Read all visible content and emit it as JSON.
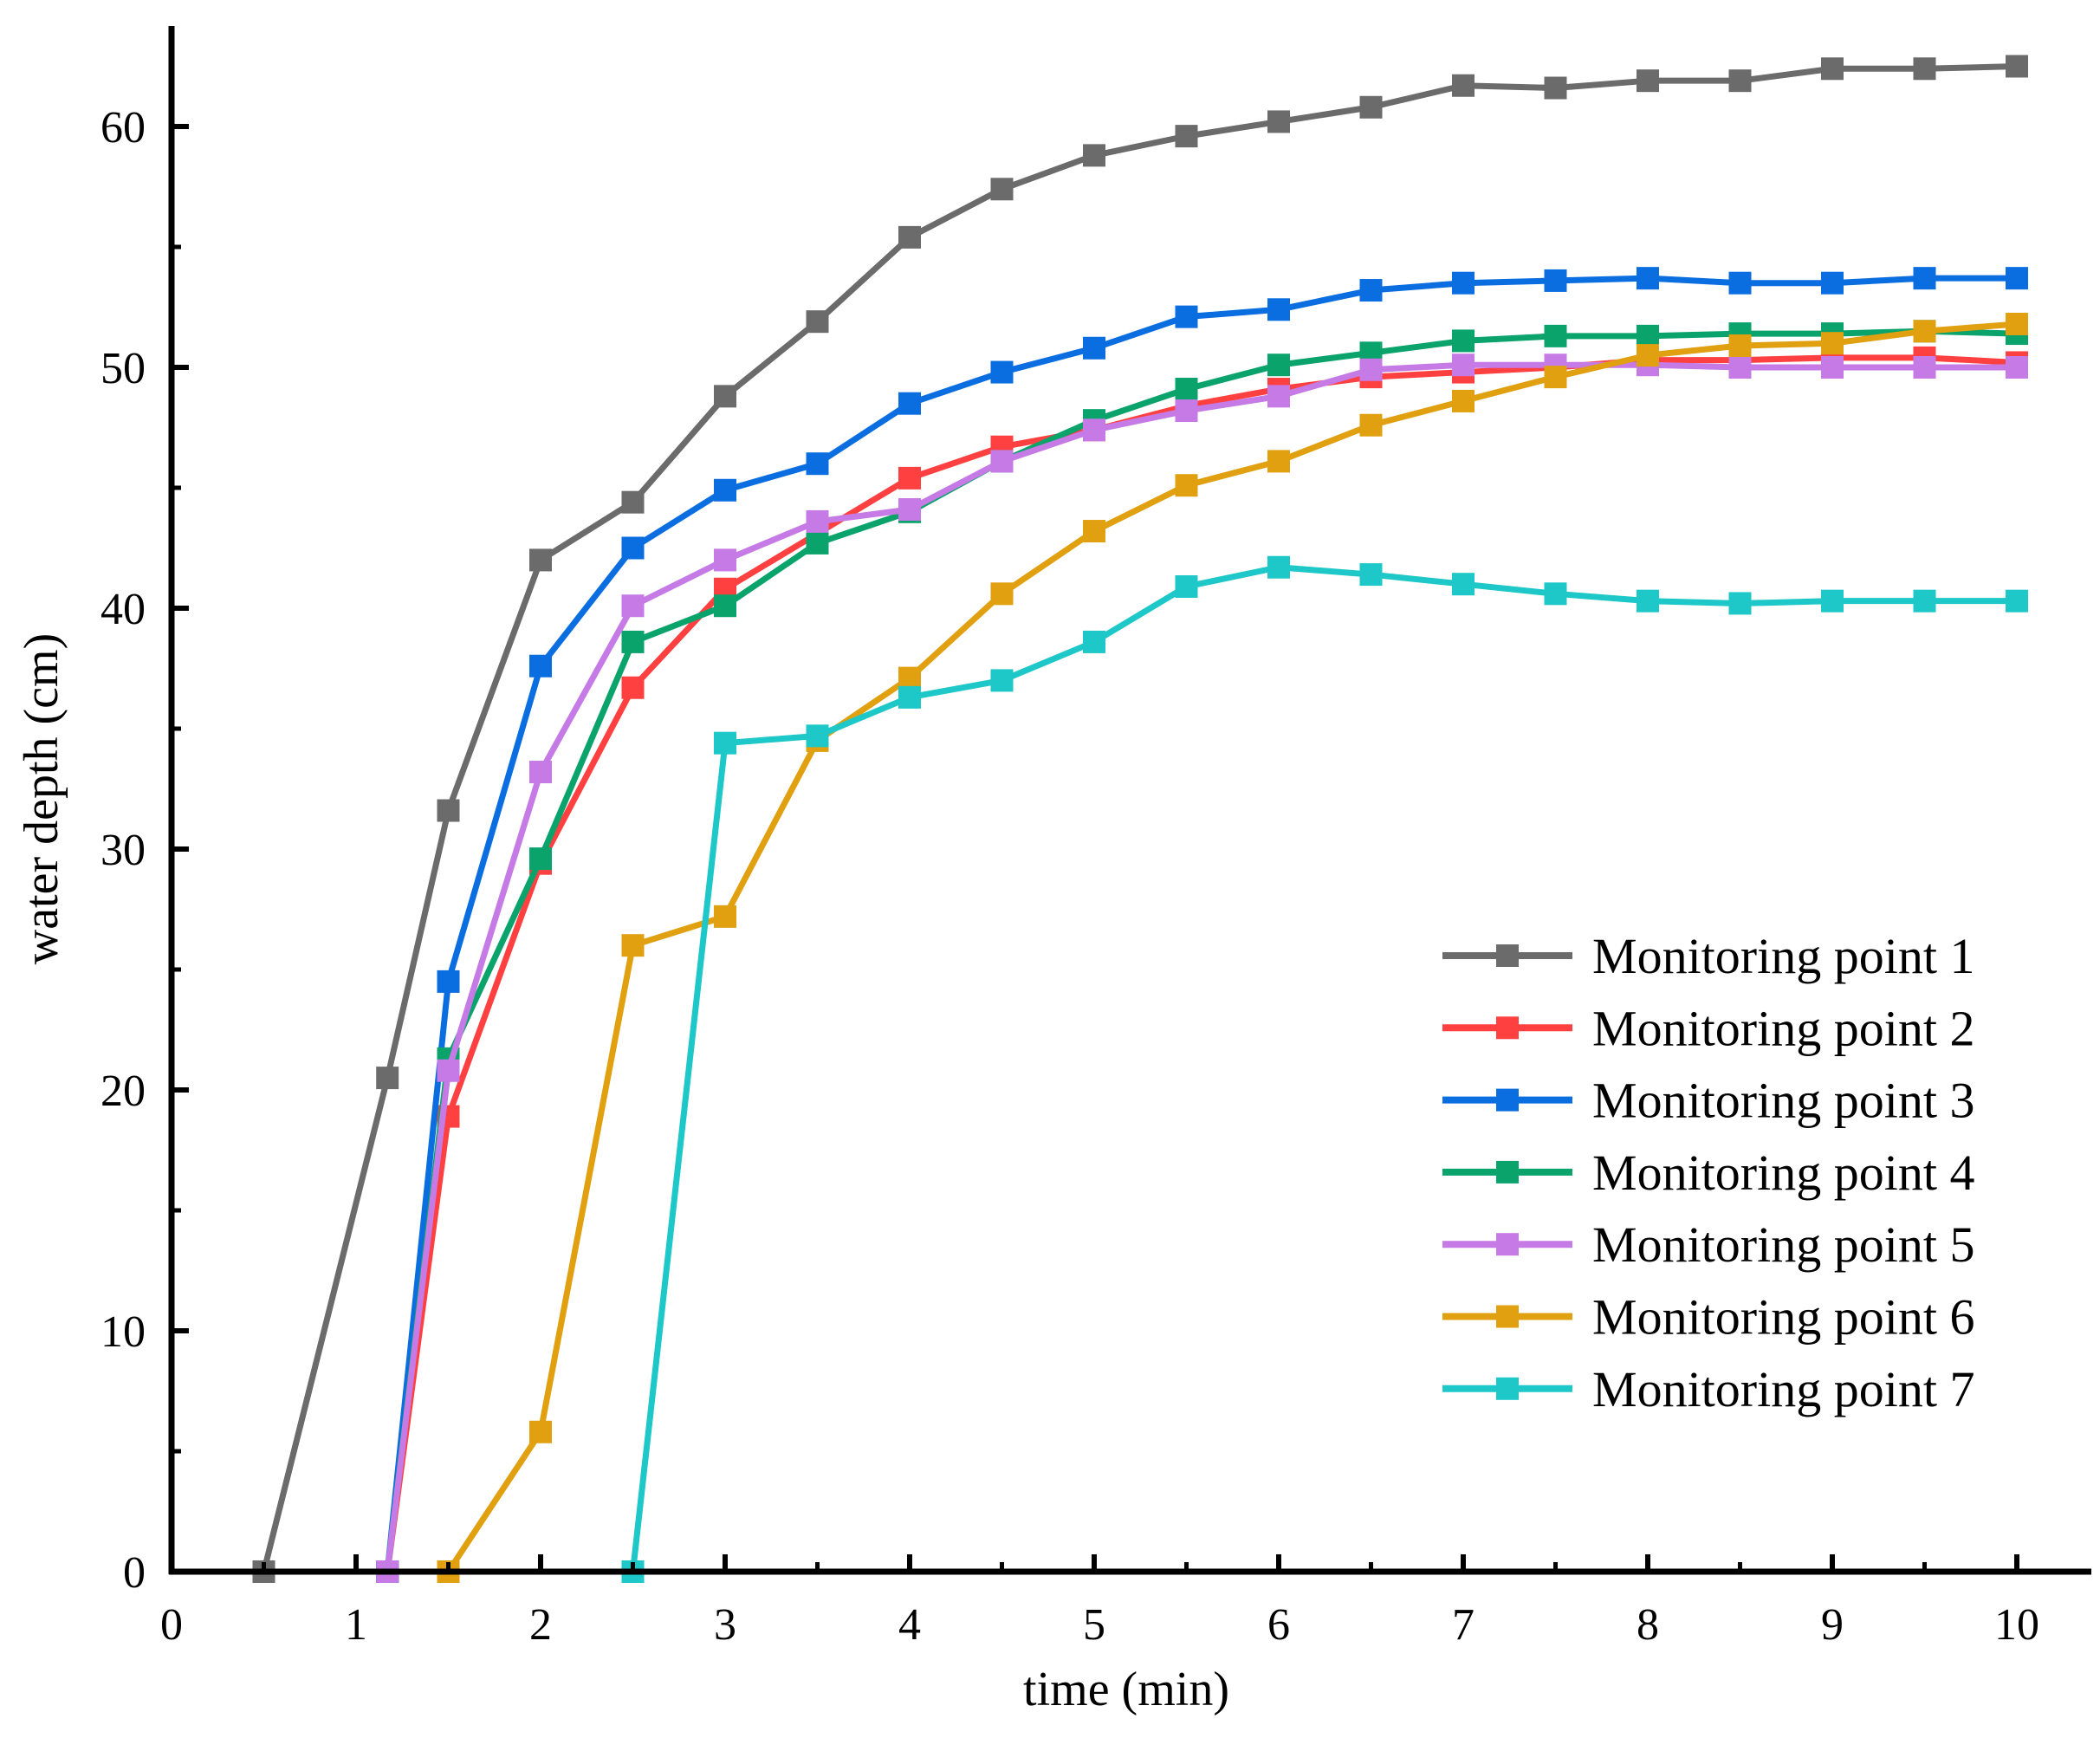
{
  "chart_data": {
    "type": "line",
    "title": "",
    "xlabel": "time (min)",
    "ylabel": "water depth (cm)",
    "xlim": [
      0,
      10.4
    ],
    "ylim": [
      0,
      64
    ],
    "xticks": [
      0,
      1,
      2,
      3,
      4,
      5,
      6,
      7,
      8,
      9,
      10
    ],
    "yticks": [
      0,
      10,
      20,
      30,
      40,
      50,
      60
    ],
    "grid": false,
    "legend_position": "lower-right",
    "series": [
      {
        "name": "Monitoring point 1",
        "color": "#6b6b6b",
        "marker": "square",
        "x": [
          0.5,
          1.17,
          1.5,
          2,
          2.5,
          3,
          3.5,
          4,
          4.5,
          5,
          5.5,
          6,
          6.5,
          7,
          7.5,
          8,
          8.5,
          9,
          9.5,
          10
        ],
        "y": [
          0,
          20.5,
          31.6,
          42.0,
          44.4,
          48.8,
          51.9,
          55.4,
          57.4,
          58.8,
          59.6,
          60.2,
          60.8,
          61.7,
          61.6,
          61.9,
          61.9,
          62.4,
          62.4,
          62.5
        ]
      },
      {
        "name": "Monitoring point 2",
        "color": "#ff4040",
        "marker": "square",
        "x": [
          1.17,
          1.5,
          2,
          2.5,
          3,
          3.5,
          4,
          4.5,
          5,
          5.5,
          6,
          6.5,
          7,
          7.5,
          8,
          8.5,
          9,
          9.5,
          10
        ],
        "y": [
          0,
          18.9,
          29.4,
          36.7,
          40.8,
          43.1,
          45.4,
          46.7,
          47.4,
          48.4,
          49.1,
          49.6,
          49.8,
          50.0,
          50.3,
          50.3,
          50.4,
          50.4,
          50.2
        ]
      },
      {
        "name": "Monitoring point 3",
        "color": "#0b6ee0",
        "marker": "square",
        "x": [
          1.17,
          1.5,
          2,
          2.5,
          3,
          3.5,
          4,
          4.5,
          5,
          5.5,
          6,
          6.5,
          7,
          7.5,
          8,
          8.5,
          9,
          9.5,
          10
        ],
        "y": [
          0,
          24.5,
          37.6,
          42.5,
          44.9,
          46.0,
          48.5,
          49.8,
          50.8,
          52.1,
          52.4,
          53.2,
          53.5,
          53.6,
          53.7,
          53.5,
          53.5,
          53.7,
          53.7
        ]
      },
      {
        "name": "Monitoring point 4",
        "color": "#0aa36b",
        "marker": "square",
        "x": [
          1.17,
          1.5,
          2,
          2.5,
          3,
          3.5,
          4,
          4.5,
          5,
          5.5,
          6,
          6.5,
          7,
          7.5,
          8,
          8.5,
          9,
          9.5,
          10
        ],
        "y": [
          0,
          21.3,
          29.6,
          38.6,
          40.1,
          42.7,
          44.0,
          46.1,
          47.8,
          49.1,
          50.1,
          50.6,
          51.1,
          51.3,
          51.3,
          51.4,
          51.4,
          51.5,
          51.4
        ]
      },
      {
        "name": "Monitoring point 5",
        "color": "#c57ae6",
        "marker": "square",
        "x": [
          1.17,
          1.5,
          2,
          2.5,
          3,
          3.5,
          4,
          4.5,
          5,
          5.5,
          6,
          6.5,
          7,
          7.5,
          8,
          8.5,
          9,
          9.5,
          10
        ],
        "y": [
          0,
          20.8,
          33.2,
          40.1,
          42.0,
          43.6,
          44.1,
          46.1,
          47.4,
          48.2,
          48.8,
          49.9,
          50.1,
          50.1,
          50.1,
          50.0,
          50.0,
          50.0,
          50.0
        ]
      },
      {
        "name": "Monitoring point 6",
        "color": "#e0a010",
        "marker": "square",
        "x": [
          1.5,
          2,
          2.5,
          3,
          3.5,
          4,
          4.5,
          5,
          5.5,
          6,
          6.5,
          7,
          7.5,
          8,
          8.5,
          9,
          9.5,
          10
        ],
        "y": [
          0,
          5.8,
          26.0,
          27.2,
          34.5,
          37.1,
          40.6,
          43.2,
          45.1,
          46.1,
          47.6,
          48.6,
          49.6,
          50.5,
          50.9,
          51.0,
          51.5,
          51.8
        ]
      },
      {
        "name": "Monitoring point 7",
        "color": "#1ec8c8",
        "marker": "square",
        "x": [
          2.5,
          3,
          3.5,
          4,
          4.5,
          5,
          5.5,
          6,
          6.5,
          7,
          7.5,
          8,
          8.5,
          9,
          9.5,
          10
        ],
        "y": [
          0,
          34.4,
          34.7,
          36.3,
          37.0,
          38.6,
          40.9,
          41.7,
          41.4,
          41.0,
          40.6,
          40.3,
          40.2,
          40.3,
          40.3,
          40.3
        ]
      }
    ]
  }
}
